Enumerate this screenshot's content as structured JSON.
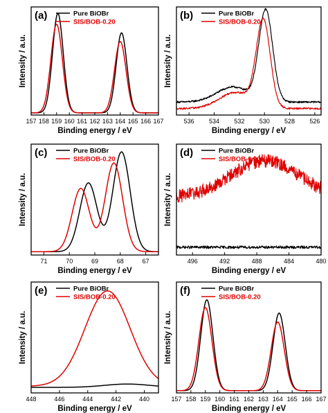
{
  "colors": {
    "pure": "#000000",
    "sis": "#e00000",
    "axis": "#000000"
  },
  "chart_data": [
    {
      "panel_label": "(a)",
      "type": "line",
      "xlabel": "Binding energy / eV",
      "ylabel": "Intensity / a.u.",
      "xlim": [
        157,
        167
      ],
      "reversed": false,
      "ylim": [
        0,
        1.0
      ],
      "xticks": [
        157,
        158,
        159,
        160,
        161,
        162,
        163,
        164,
        165,
        166,
        167
      ],
      "legend_position": "top-left",
      "series": [
        {
          "name": "Pure BiOBr",
          "color": "#000000",
          "kind": "peaks",
          "baseline": 0.02,
          "peaks": [
            {
              "x": 159.1,
              "h": 0.92,
              "w": 0.42
            },
            {
              "x": 164.1,
              "h": 0.74,
              "w": 0.42
            }
          ]
        },
        {
          "name": "SIS/BOB-0.20",
          "color": "#e00000",
          "kind": "peaks",
          "baseline": 0.02,
          "peaks": [
            {
              "x": 159.0,
              "h": 0.82,
              "w": 0.45
            },
            {
              "x": 164.0,
              "h": 0.66,
              "w": 0.45
            }
          ]
        }
      ]
    },
    {
      "panel_label": "(b)",
      "type": "line",
      "xlabel": "Binding energy / eV",
      "ylabel": "Intensity / a.u.",
      "xlim": [
        537,
        525.5
      ],
      "reversed": true,
      "ylim": [
        0,
        1.0
      ],
      "xticks": [
        536,
        534,
        532,
        530,
        528,
        526
      ],
      "legend_position": "top-left",
      "series": [
        {
          "name": "Pure BiOBr",
          "color": "#000000",
          "kind": "peaks",
          "baseline": 0.12,
          "noise": 0.008,
          "peaks": [
            {
              "x": 529.9,
              "h": 0.84,
              "w": 0.55
            },
            {
              "x": 532.5,
              "h": 0.14,
              "w": 1.3
            }
          ]
        },
        {
          "name": "SIS/BOB-0.20",
          "color": "#e00000",
          "kind": "peaks",
          "baseline": 0.06,
          "noise": 0.008,
          "peaks": [
            {
              "x": 530.1,
              "h": 0.8,
              "w": 0.55
            },
            {
              "x": 532.3,
              "h": 0.15,
              "w": 1.3
            }
          ]
        }
      ]
    },
    {
      "panel_label": "(c)",
      "type": "line",
      "xlabel": "Binding energy / eV",
      "ylabel": "Intensity / a.u.",
      "xlim": [
        71.5,
        66.5
      ],
      "reversed": true,
      "ylim": [
        0,
        1.0
      ],
      "xticks": [
        71,
        70,
        69,
        68,
        67
      ],
      "legend_position": "top-left",
      "series": [
        {
          "name": "Pure BiOBr",
          "color": "#000000",
          "kind": "peaks",
          "baseline": 0.03,
          "peaks": [
            {
              "x": 67.95,
              "h": 0.9,
              "w": 0.34
            },
            {
              "x": 69.25,
              "h": 0.62,
              "w": 0.34
            }
          ]
        },
        {
          "name": "SIS/BOB-0.20",
          "color": "#e00000",
          "kind": "peaks",
          "baseline": 0.03,
          "peaks": [
            {
              "x": 68.25,
              "h": 0.8,
              "w": 0.34
            },
            {
              "x": 69.55,
              "h": 0.57,
              "w": 0.34
            }
          ]
        }
      ]
    },
    {
      "panel_label": "(d)",
      "type": "line",
      "xlabel": "Binding energy / eV",
      "ylabel": "Intensity / a.u.",
      "xlim": [
        498,
        480
      ],
      "reversed": true,
      "ylim": [
        0,
        1.0
      ],
      "xticks": [
        496,
        492,
        488,
        484,
        480
      ],
      "legend_position": "top-left",
      "series": [
        {
          "name": "Pure BiOBr",
          "color": "#000000",
          "kind": "peaks",
          "baseline": 0.07,
          "noise": 0.012,
          "peaks": []
        },
        {
          "name": "SIS/BOB-0.20",
          "color": "#e00000",
          "kind": "peaks",
          "baseline": 0.52,
          "noise": 0.06,
          "peaks": [
            {
              "x": 487.0,
              "h": 0.33,
              "w": 4.2
            }
          ]
        }
      ]
    },
    {
      "panel_label": "(e)",
      "type": "line",
      "xlabel": "Binding energy / eV",
      "ylabel": "Intensity / a.u.",
      "xlim": [
        448,
        439
      ],
      "reversed": true,
      "ylim": [
        0,
        1.0
      ],
      "xticks": [
        448,
        446,
        444,
        442,
        440
      ],
      "legend_position": "top-left",
      "series": [
        {
          "name": "Pure BiOBr",
          "color": "#000000",
          "kind": "peaks",
          "baseline": 0.05,
          "peaks": [
            {
              "x": 441.2,
              "h": 0.03,
              "w": 1.6
            }
          ]
        },
        {
          "name": "SIS/BOB-0.20",
          "color": "#e00000",
          "kind": "peaks",
          "baseline": 0.06,
          "peaks": [
            {
              "x": 442.6,
              "h": 0.86,
              "w": 1.6
            }
          ]
        }
      ]
    },
    {
      "panel_label": "(f)",
      "type": "line",
      "xlabel": "Binding energy / eV",
      "ylabel": "Intensity / a.u.",
      "xlim": [
        157,
        167
      ],
      "reversed": false,
      "ylim": [
        0,
        1.0
      ],
      "xticks": [
        157,
        158,
        159,
        160,
        161,
        162,
        163,
        164,
        165,
        166,
        167
      ],
      "legend_position": "top-left",
      "series": [
        {
          "name": "Pure BiOBr",
          "color": "#000000",
          "kind": "peaks",
          "baseline": 0.02,
          "peaks": [
            {
              "x": 159.1,
              "h": 0.82,
              "w": 0.42
            },
            {
              "x": 164.1,
              "h": 0.7,
              "w": 0.42
            }
          ]
        },
        {
          "name": "SIS/BOB-0.20",
          "color": "#e00000",
          "kind": "peaks",
          "baseline": 0.02,
          "peaks": [
            {
              "x": 159.0,
              "h": 0.75,
              "w": 0.45
            },
            {
              "x": 164.0,
              "h": 0.62,
              "w": 0.45
            }
          ]
        }
      ]
    }
  ]
}
